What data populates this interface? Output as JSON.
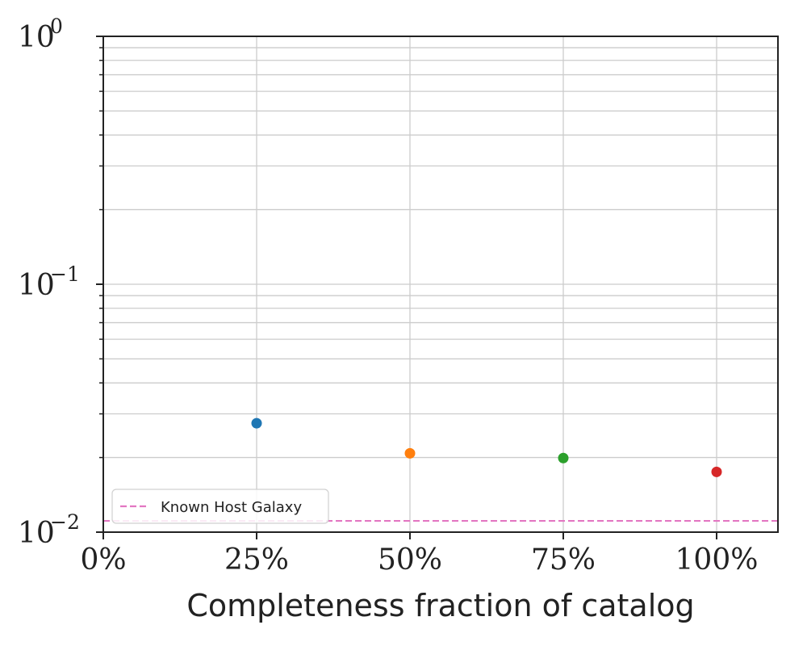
{
  "chart_data": {
    "type": "scatter",
    "xlabel": "Completeness fraction of catalog",
    "ylabel": "",
    "x_scale": "linear",
    "y_scale": "log",
    "xlim": [
      0,
      110
    ],
    "ylim": [
      0.01,
      1
    ],
    "x_ticks": [
      {
        "value": 0,
        "label": "0%"
      },
      {
        "value": 25,
        "label": "25%"
      },
      {
        "value": 50,
        "label": "50%"
      },
      {
        "value": 75,
        "label": "75%"
      },
      {
        "value": 100,
        "label": "100%"
      }
    ],
    "y_ticks": [
      {
        "value": 1,
        "base": "10",
        "exponent": "0"
      },
      {
        "value": 0.1,
        "base": "10",
        "exponent": "−1"
      },
      {
        "value": 0.01,
        "base": "10",
        "exponent": "−2"
      }
    ],
    "grid": true,
    "points": [
      {
        "x": 25,
        "y": 0.0275,
        "color": "#1f77b4"
      },
      {
        "x": 50,
        "y": 0.0208,
        "color": "#ff7f0e"
      },
      {
        "x": 75,
        "y": 0.0199,
        "color": "#2ca02c"
      },
      {
        "x": 100,
        "y": 0.0175,
        "color": "#d62728"
      }
    ],
    "reference_line": {
      "y": 0.0111,
      "style": "dashed",
      "color": "#e377c2",
      "label": "Known Host Galaxy"
    },
    "legend": {
      "position": "bottom-left",
      "entries": [
        "Known Host Galaxy"
      ]
    }
  }
}
